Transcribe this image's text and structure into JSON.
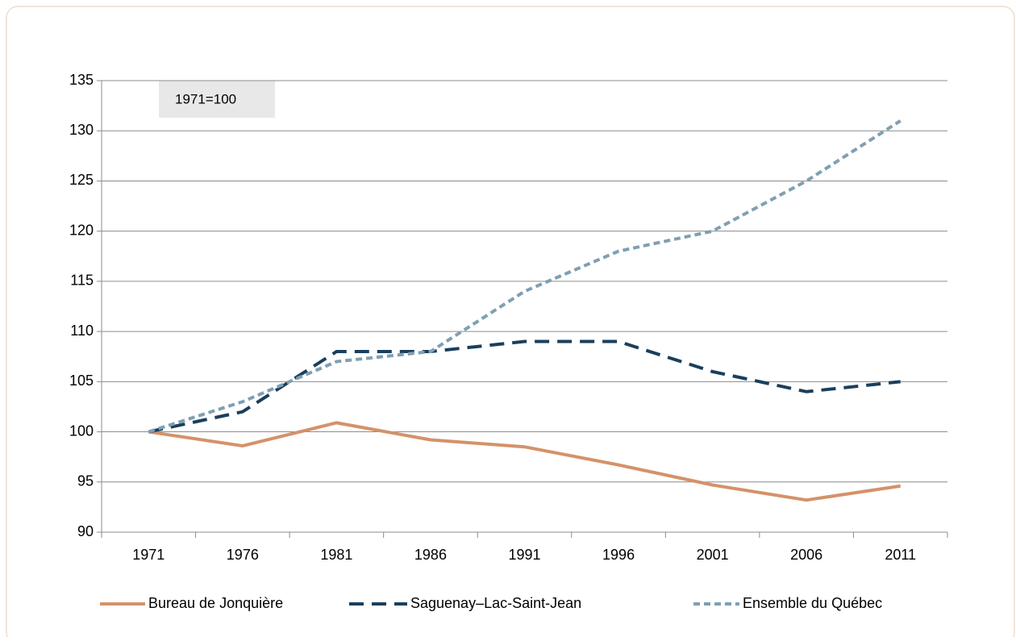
{
  "chart_data": {
    "type": "line",
    "annotation": "1971=100",
    "categories": [
      "1971",
      "1976",
      "1981",
      "1986",
      "1991",
      "1996",
      "2001",
      "2006",
      "2011"
    ],
    "series": [
      {
        "name": "Bureau de Jonquière",
        "color": "#d4926a",
        "dash": "solid",
        "values": [
          100,
          98.6,
          100.9,
          99.2,
          98.5,
          96.7,
          94.7,
          93.2,
          94.6
        ]
      },
      {
        "name": "Saguenay–Lac-Saint-Jean",
        "color": "#1a3f5c",
        "dash": "long",
        "values": [
          100,
          102,
          108,
          108,
          109,
          109,
          106,
          104,
          105
        ]
      },
      {
        "name": "Ensemble du Québec",
        "color": "#7f9fb3",
        "dash": "short",
        "values": [
          100,
          103,
          107,
          108,
          114,
          118,
          120,
          125,
          131
        ]
      }
    ],
    "ylim": [
      90,
      135
    ],
    "yticks": [
      90,
      95,
      100,
      105,
      110,
      115,
      120,
      125,
      130,
      135
    ],
    "grid": true,
    "legend": "bottom"
  }
}
